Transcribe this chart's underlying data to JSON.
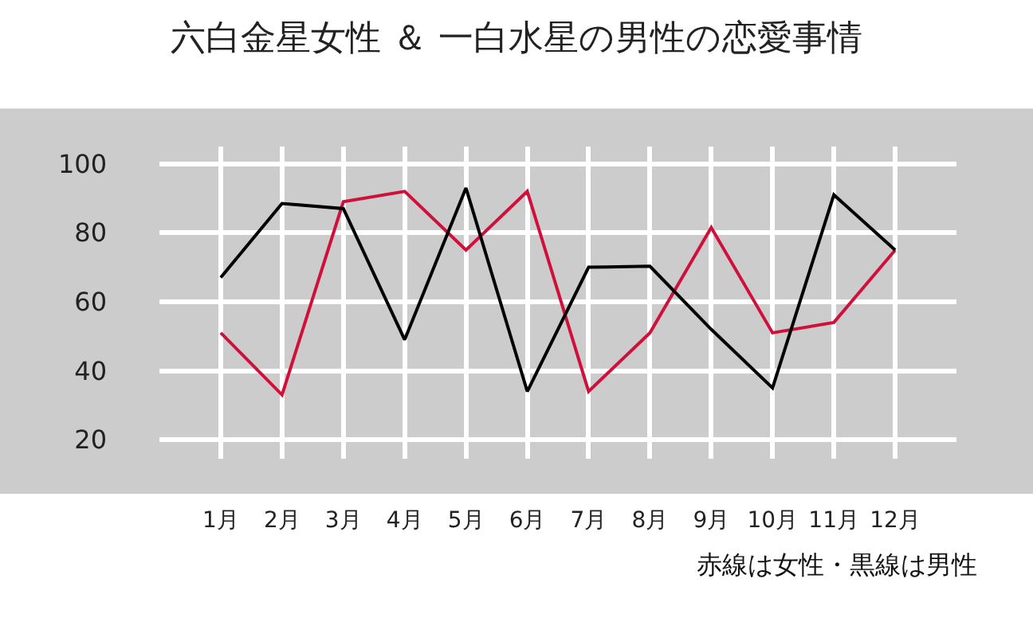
{
  "chart_data": {
    "type": "line",
    "title": "六白金星女性 ＆ 一白水星の男性の恋愛事情",
    "categories": [
      "1月",
      "2月",
      "3月",
      "4月",
      "5月",
      "6月",
      "7月",
      "8月",
      "9月",
      "10月",
      "11月",
      "12月"
    ],
    "series": [
      {
        "color": "#d0103a",
        "values": [
          51,
          33,
          89,
          92,
          75,
          92,
          34,
          51,
          81.5,
          51,
          54,
          75
        ]
      },
      {
        "color": "#000000",
        "values": [
          67,
          88.5,
          87,
          49,
          93,
          34,
          70,
          70.3,
          52,
          35,
          91,
          75
        ]
      }
    ],
    "ylim": [
      14.5,
      105
    ],
    "yticks": [
      20,
      40,
      60,
      80,
      100
    ],
    "grid": true,
    "marker": "none",
    "line_style": "solid",
    "annotations": [
      "赤線は女性・黒線は男性"
    ]
  }
}
